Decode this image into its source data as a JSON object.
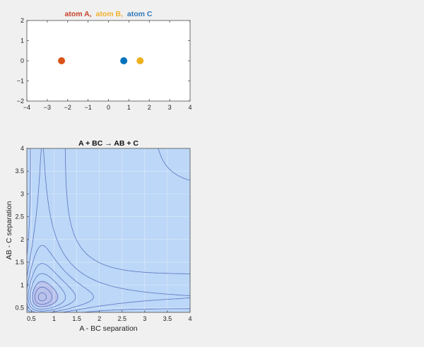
{
  "figure": {
    "background": "#f0f0f0"
  },
  "chart_data": [
    {
      "type": "scatter",
      "title_parts": [
        {
          "text": "atom A,",
          "color": "#c8412b"
        },
        {
          "text": "atom B,",
          "color": "#f0b12d"
        },
        {
          "text": "atom C",
          "color": "#2f78b8"
        }
      ],
      "xlim": [
        -4,
        4
      ],
      "ylim": [
        -2,
        2
      ],
      "xticks": [
        -4,
        -3,
        -2,
        -1,
        0,
        1,
        2,
        3,
        4
      ],
      "yticks": [
        -2,
        -1,
        0,
        1,
        2
      ],
      "grid": false,
      "points": [
        {
          "label": "atom A",
          "x": -2.3,
          "y": 0,
          "color": "#d95319"
        },
        {
          "label": "atom C",
          "x": 0.75,
          "y": 0,
          "color": "#0072bd"
        },
        {
          "label": "atom B",
          "x": 1.55,
          "y": 0,
          "color": "#edb120"
        }
      ]
    },
    {
      "type": "contour",
      "title": "A + BC → AB + C",
      "xlabel": "A - BC separation",
      "ylabel": "AB - C separation",
      "xlim": [
        0.4,
        4
      ],
      "ylim": [
        0.4,
        4
      ],
      "xticks": [
        0.5,
        1,
        1.5,
        2,
        2.5,
        3,
        3.5,
        4
      ],
      "yticks": [
        0.5,
        1,
        1.5,
        2,
        2.5,
        3,
        3.5,
        4
      ],
      "grid": true,
      "fill_color": "#bcd7f7",
      "valley_color": "#b9c1ea",
      "line_color": "#4a62b8",
      "levels": [
        0.12,
        0.5,
        1.0,
        1.7,
        2.5,
        3.5,
        4.6,
        6.2,
        9.0,
        16.0
      ],
      "hot_colors": [
        "#ffd23f",
        "#f9a825",
        "#3fbf8f",
        "#35d0c0"
      ]
    }
  ]
}
